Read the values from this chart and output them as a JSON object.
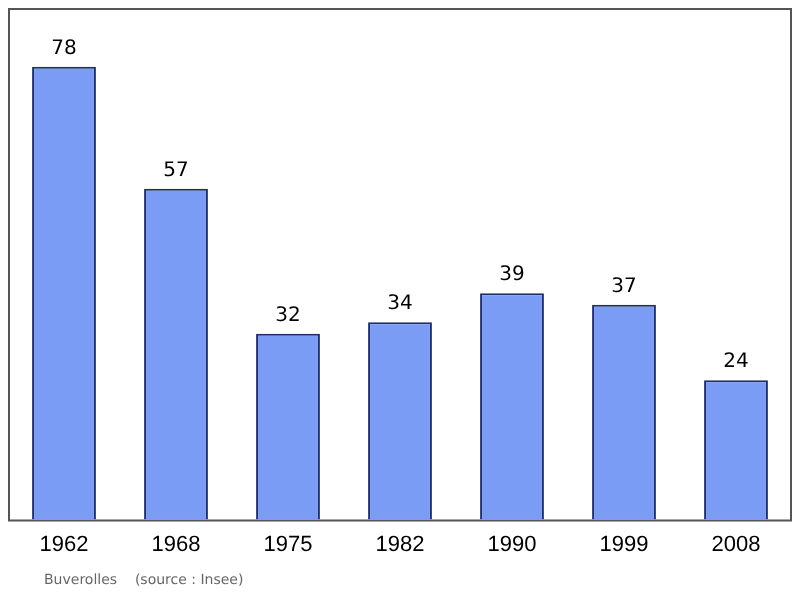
{
  "chart_data": {
    "type": "bar",
    "categories": [
      "1962",
      "1968",
      "1975",
      "1982",
      "1990",
      "1999",
      "2008"
    ],
    "values": [
      78,
      57,
      32,
      34,
      39,
      37,
      24
    ],
    "color": "#7b9cf5",
    "data_labels": true,
    "grid": false,
    "legend": false,
    "annotations": [
      "Buverolles    (source : Insee)"
    ]
  }
}
